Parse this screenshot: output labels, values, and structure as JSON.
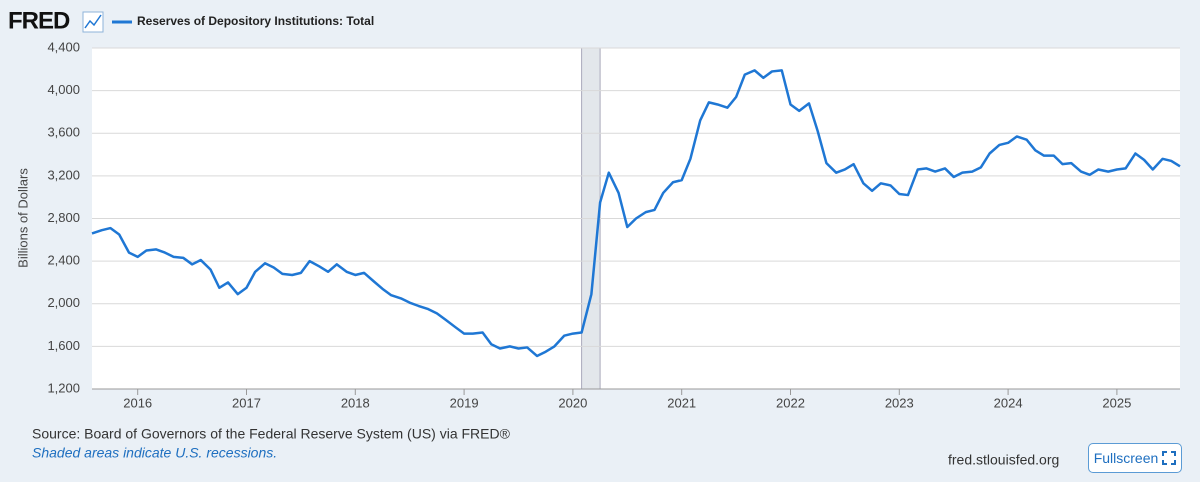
{
  "header": {
    "logo": "FRED"
  },
  "chart_data": {
    "type": "line",
    "ylabel": "Billions of Dollars",
    "series": [
      {
        "name": "Reserves of Depository Institutions: Total",
        "color": "#1f77d4",
        "values": [
          2660,
          2690,
          2710,
          2650,
          2480,
          2440,
          2500,
          2510,
          2480,
          2440,
          2430,
          2370,
          2410,
          2320,
          2150,
          2200,
          2090,
          2150,
          2300,
          2380,
          2340,
          2280,
          2270,
          2290,
          2400,
          2350,
          2300,
          2370,
          2300,
          2270,
          2290,
          2210,
          2140,
          2080,
          2050,
          2010,
          1980,
          1950,
          1910,
          1850,
          1780,
          1720,
          1720,
          1730,
          1620,
          1580,
          1600,
          1580,
          1590,
          1510,
          1550,
          1600,
          1700,
          1720,
          1730,
          2090,
          2950,
          3230,
          3040,
          2720,
          2800,
          2860,
          2880,
          3040,
          3140,
          3160,
          3360,
          3720,
          3890,
          3870,
          3840,
          3940,
          4150,
          4190,
          4120,
          4180,
          4190,
          3870,
          3810,
          3880,
          3620,
          3320,
          3230,
          3260,
          3310,
          3130,
          3060,
          3130,
          3110,
          3030,
          3020,
          3260,
          3270,
          3240,
          3270,
          3190,
          3230,
          3240,
          3280,
          3410,
          3490,
          3510,
          3570,
          3540,
          3440,
          3390,
          3390,
          3310,
          3320,
          3240,
          3210,
          3260,
          3240,
          3260,
          3270,
          3410,
          3350,
          3260,
          3360,
          3340,
          3290
        ]
      }
    ],
    "x": [
      2015.58,
      2015.67,
      2015.75,
      2015.83,
      2015.92,
      2016,
      2016.08,
      2016.17,
      2016.25,
      2016.33,
      2016.42,
      2016.5,
      2016.58,
      2016.67,
      2016.75,
      2016.83,
      2016.92,
      2017,
      2017.08,
      2017.17,
      2017.25,
      2017.33,
      2017.42,
      2017.5,
      2017.58,
      2017.67,
      2017.75,
      2017.83,
      2017.92,
      2018,
      2018.08,
      2018.17,
      2018.25,
      2018.33,
      2018.42,
      2018.5,
      2018.58,
      2018.67,
      2018.75,
      2018.83,
      2018.92,
      2019,
      2019.08,
      2019.17,
      2019.25,
      2019.33,
      2019.42,
      2019.5,
      2019.58,
      2019.67,
      2019.75,
      2019.83,
      2019.92,
      2020,
      2020.08,
      2020.17,
      2020.25,
      2020.33,
      2020.42,
      2020.5,
      2020.58,
      2020.67,
      2020.75,
      2020.83,
      2020.92,
      2021,
      2021.08,
      2021.17,
      2021.25,
      2021.33,
      2021.42,
      2021.5,
      2021.58,
      2021.67,
      2021.75,
      2021.83,
      2021.92,
      2022,
      2022.08,
      2022.17,
      2022.25,
      2022.33,
      2022.42,
      2022.5,
      2022.58,
      2022.67,
      2022.75,
      2022.83,
      2022.92,
      2023,
      2023.08,
      2023.17,
      2023.25,
      2023.33,
      2023.42,
      2023.5,
      2023.58,
      2023.67,
      2023.75,
      2023.83,
      2023.92,
      2024,
      2024.08,
      2024.17,
      2024.25,
      2024.33,
      2024.42,
      2024.5,
      2024.58,
      2024.67,
      2024.75,
      2024.83,
      2024.92,
      2025,
      2025.08,
      2025.17,
      2025.25,
      2025.33,
      2025.42,
      2025.5,
      2025.58
    ],
    "xlim": [
      2015.58,
      2025.58
    ],
    "xticks": [
      2016,
      2017,
      2018,
      2019,
      2020,
      2021,
      2022,
      2023,
      2024,
      2025
    ],
    "ylim": [
      1200,
      4400
    ],
    "yticks": [
      {
        "value": 1200,
        "label": "1,200"
      },
      {
        "value": 1600,
        "label": "1,600"
      },
      {
        "value": 2000,
        "label": "2,000"
      },
      {
        "value": 2400,
        "label": "2,400"
      },
      {
        "value": 2800,
        "label": "2,800"
      },
      {
        "value": 3200,
        "label": "3,200"
      },
      {
        "value": 3600,
        "label": "3,600"
      },
      {
        "value": 4000,
        "label": "4,000"
      },
      {
        "value": 4400,
        "label": "4,400"
      }
    ],
    "grid": true,
    "recessions": [
      [
        2020.08,
        2020.25
      ]
    ],
    "recession_color": "#e3e7eb"
  },
  "footer": {
    "source": "Source: Board of Governors of the Federal Reserve System (US) via FRED®",
    "note": "Shaded areas indicate U.S. recessions.",
    "url": "fred.stlouisfed.org",
    "button": "Fullscreen"
  }
}
